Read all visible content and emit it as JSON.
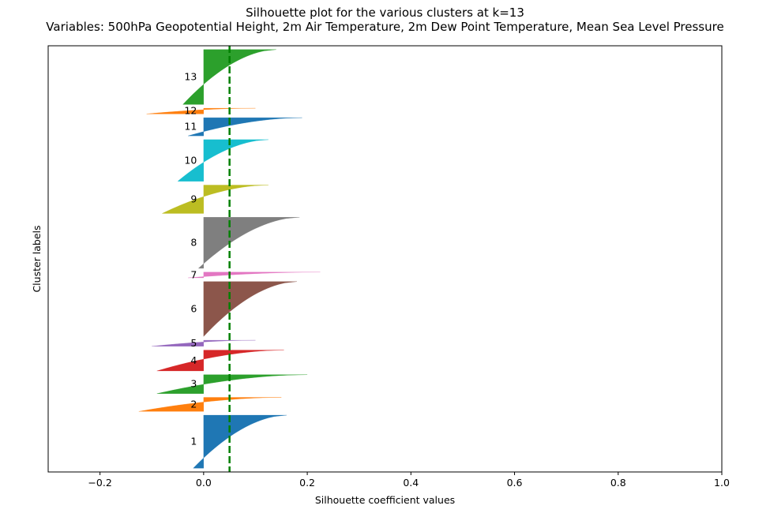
{
  "chart_data": {
    "type": "silhouette",
    "title": "Silhouette plot for the various clusters at k=13",
    "subtitle": "Variables: 500hPa Geopotential Height, 2m Air Temperature, 2m Dew Point Temperature, Mean Sea Level Pressure",
    "xlabel": "Silhouette coefficient values",
    "ylabel": "Cluster labels",
    "xlim": [
      -0.3,
      1.0
    ],
    "x_ticks": [
      -0.2,
      0.0,
      0.2,
      0.4,
      0.6,
      0.8,
      1.0
    ],
    "x_tick_labels": [
      "−0.2",
      "0.0",
      "0.2",
      "0.4",
      "0.6",
      "0.8",
      "1.0"
    ],
    "y_ticks_shown": false,
    "average_silhouette": 0.05,
    "average_line_style": "dashed",
    "average_line_color": "#008000",
    "clusters": [
      {
        "label": "1",
        "size": 140,
        "max": 0.16,
        "min": -0.02,
        "color": "#1f77b4"
      },
      {
        "label": "2",
        "size": 37,
        "max": 0.15,
        "min": -0.125,
        "color": "#ff7f0e"
      },
      {
        "label": "3",
        "size": 50,
        "max": 0.2,
        "min": -0.09,
        "color": "#2ca02c"
      },
      {
        "label": "4",
        "size": 55,
        "max": 0.155,
        "min": -0.09,
        "color": "#d62728"
      },
      {
        "label": "5",
        "size": 16,
        "max": 0.1,
        "min": -0.1,
        "color": "#9467bd"
      },
      {
        "label": "6",
        "size": 145,
        "max": 0.18,
        "min": 0.0,
        "color": "#8c564b"
      },
      {
        "label": "7",
        "size": 15,
        "max": 0.225,
        "min": -0.03,
        "color": "#e377c2"
      },
      {
        "label": "8",
        "size": 135,
        "max": 0.185,
        "min": -0.01,
        "color": "#7f7f7f"
      },
      {
        "label": "9",
        "size": 75,
        "max": 0.125,
        "min": -0.08,
        "color": "#bcbd22"
      },
      {
        "label": "10",
        "size": 110,
        "max": 0.125,
        "min": -0.05,
        "color": "#17becf"
      },
      {
        "label": "11",
        "size": 48,
        "max": 0.19,
        "min": -0.03,
        "color": "#1f77b4"
      },
      {
        "label": "12",
        "size": 15,
        "max": 0.1,
        "min": -0.11,
        "color": "#ff7f0e"
      },
      {
        "label": "13",
        "size": 145,
        "max": 0.14,
        "min": -0.04,
        "color": "#2ca02c"
      }
    ]
  }
}
